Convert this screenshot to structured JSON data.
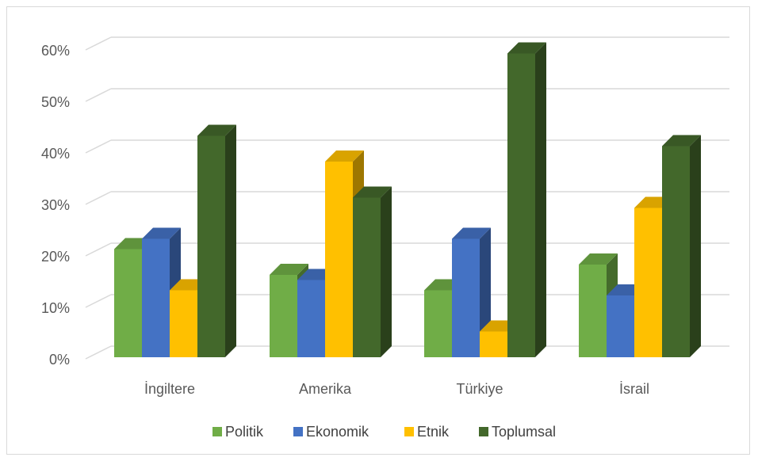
{
  "chart_data": {
    "type": "bar",
    "title": "",
    "xlabel": "",
    "ylabel": "",
    "ylim": [
      0,
      0.6
    ],
    "y_ticks": [
      0,
      0.1,
      0.2,
      0.3,
      0.4,
      0.5,
      0.6
    ],
    "y_tick_labels": [
      "0%",
      "10%",
      "20%",
      "30%",
      "40%",
      "50%",
      "60%"
    ],
    "categories": [
      "İngiltere",
      "Amerika",
      "Türkiye",
      "İsrail"
    ],
    "series": [
      {
        "name": "Politik",
        "color": "#70ad47",
        "values": [
          0.21,
          0.16,
          0.13,
          0.18
        ]
      },
      {
        "name": "Ekonomik",
        "color": "#4472c4",
        "values": [
          0.23,
          0.15,
          0.23,
          0.12
        ]
      },
      {
        "name": "Etnik",
        "color": "#ffc000",
        "values": [
          0.13,
          0.38,
          0.05,
          0.29
        ]
      },
      {
        "name": "Toplumsal",
        "color": "#43682b",
        "values": [
          0.43,
          0.31,
          0.59,
          0.41
        ]
      }
    ],
    "grid": true,
    "legend": "bottom",
    "style": "3d-clustered"
  }
}
